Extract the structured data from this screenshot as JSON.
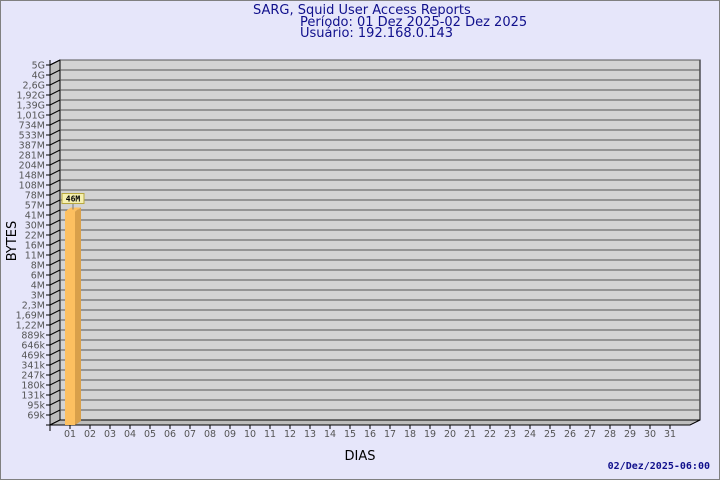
{
  "header": {
    "title": "SARG, Squid User Access Reports",
    "period": "Período: 01 Dez 2025-02 Dez 2025",
    "user": "Usuário: 192.168.0.143"
  },
  "footer": {
    "timestamp": "02/Dez/2025-06:00"
  },
  "chart_data": {
    "type": "bar",
    "style": "3d",
    "xlabel": "DIAS",
    "ylabel": "BYTES",
    "yscale": "log",
    "grid": true,
    "y_ticks": [
      "5G",
      "4G",
      "2,6G",
      "1,92G",
      "1,39G",
      "1,01G",
      "734M",
      "533M",
      "387M",
      "281M",
      "204M",
      "148M",
      "108M",
      "78M",
      "57M",
      "41M",
      "30M",
      "22M",
      "16M",
      "11M",
      "8M",
      "6M",
      "4M",
      "3M",
      "2,3M",
      "1,69M",
      "1,22M",
      "889k",
      "646k",
      "469k",
      "341k",
      "247k",
      "180k",
      "131k",
      "95k",
      "69k"
    ],
    "categories": [
      "01",
      "02",
      "03",
      "04",
      "05",
      "06",
      "07",
      "08",
      "09",
      "10",
      "11",
      "12",
      "13",
      "14",
      "15",
      "16",
      "17",
      "18",
      "19",
      "20",
      "21",
      "22",
      "23",
      "24",
      "25",
      "26",
      "27",
      "28",
      "29",
      "30",
      "31"
    ],
    "bars": [
      {
        "category": "01",
        "value": 46000000,
        "label": "46M"
      }
    ],
    "colors": {
      "bar_front": "#fdc060",
      "bar_side": "#d9a04a",
      "plot_back": "#d3d3d3",
      "plot_side": "#bdbdbd",
      "label_bg": "#f5f0b0"
    }
  }
}
